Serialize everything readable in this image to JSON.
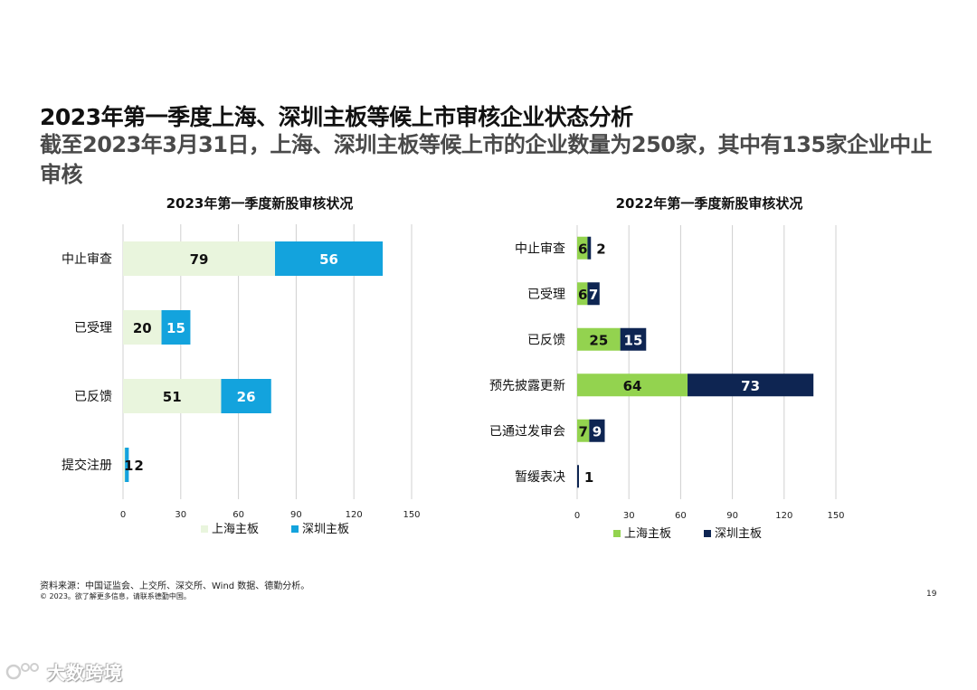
{
  "header": {
    "title": "2023年第一季度上海、深圳主板等候上市审核企业状态分析",
    "subtitle": "截至2023年3月31日，上海、深圳主板等候上市的企业数量为250家，其中有135家企业中止审核"
  },
  "colors": {
    "sh_2023": "#e9f5dd",
    "sz_2023": "#13a3dd",
    "sh_2022": "#93d34f",
    "sz_2022": "#0e2552",
    "grid": "#d0d0d0"
  },
  "chart_data": [
    {
      "type": "bar",
      "orientation": "horizontal",
      "stacked": true,
      "title": "2023年第一季度新股审核状况",
      "categories": [
        "中止审查",
        "已受理",
        "已反馈",
        "提交注册"
      ],
      "series": [
        {
          "name": "上海主板",
          "values": [
            79,
            20,
            51,
            1
          ]
        },
        {
          "name": "深圳主板",
          "values": [
            56,
            15,
            26,
            2
          ]
        }
      ],
      "xlim": [
        0,
        150
      ],
      "xticks": [
        0,
        30,
        60,
        90,
        120,
        150
      ],
      "grid": true,
      "legend": "bottom"
    },
    {
      "type": "bar",
      "orientation": "horizontal",
      "stacked": true,
      "title": "2022年第一季度新股审核状况",
      "categories": [
        "中止审查",
        "已受理",
        "已反馈",
        "预先披露更新",
        "已通过发审会",
        "暂缓表决"
      ],
      "series": [
        {
          "name": "上海主板",
          "values": [
            6,
            6,
            25,
            64,
            7,
            0
          ]
        },
        {
          "name": "深圳主板",
          "values": [
            2,
            7,
            15,
            73,
            9,
            1
          ]
        }
      ],
      "xlim": [
        0,
        150
      ],
      "xticks": [
        0,
        30,
        60,
        90,
        120,
        150
      ],
      "grid": true,
      "legend": "bottom"
    }
  ],
  "footer": {
    "source": "资料来源：中国证监会、上交所、深交所、Wind 数据、德勤分析。",
    "copyright": "© 2023。欲了解更多信息，请联系德勤中国。",
    "page_number": "19"
  },
  "watermark": {
    "text": "大数跨境"
  }
}
